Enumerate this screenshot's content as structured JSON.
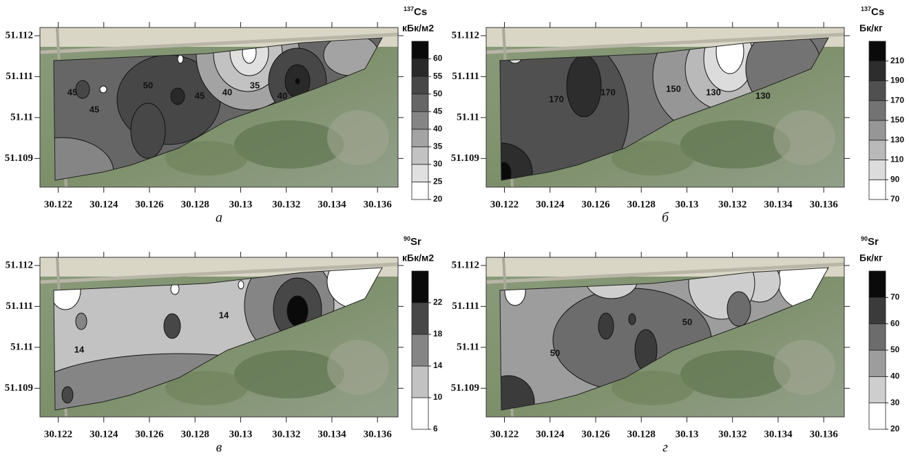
{
  "chart_data": [
    {
      "type": "contour",
      "isotope_mass": "137",
      "isotope": "Cs",
      "unit": "кБк/м2",
      "panel_label": "а",
      "xlim": [
        30.1212,
        30.1369
      ],
      "ylim": [
        51.1083,
        51.1122
      ],
      "xticks": [
        30.122,
        30.124,
        30.126,
        30.128,
        30.13,
        30.132,
        30.134,
        30.136
      ],
      "yticks": [
        51.112,
        51.111,
        51.11,
        51.109
      ],
      "levels": [
        20,
        25,
        30,
        35,
        40,
        45,
        50,
        55,
        60
      ],
      "level_max": 65,
      "contour_labels": [
        45,
        45,
        50,
        45,
        40,
        35,
        40
      ]
    },
    {
      "type": "contour",
      "isotope_mass": "137",
      "isotope": "Cs",
      "unit": "Бк/кг",
      "panel_label": "б",
      "xlim": [
        30.1212,
        30.1369
      ],
      "ylim": [
        51.1083,
        51.1122
      ],
      "xticks": [
        30.122,
        30.124,
        30.126,
        30.128,
        30.13,
        30.132,
        30.134,
        30.136
      ],
      "yticks": [
        51.112,
        51.111,
        51.11,
        51.109
      ],
      "levels": [
        70,
        90,
        110,
        130,
        150,
        170,
        190,
        210
      ],
      "level_max": 230,
      "contour_labels": [
        170,
        170,
        150,
        130,
        130
      ]
    },
    {
      "type": "contour",
      "isotope_mass": "90",
      "isotope": "Sr",
      "unit": "кБк/м2",
      "panel_label": "в",
      "xlim": [
        30.1212,
        30.1369
      ],
      "ylim": [
        51.1083,
        51.1122
      ],
      "xticks": [
        30.122,
        30.124,
        30.126,
        30.128,
        30.13,
        30.132,
        30.134,
        30.136
      ],
      "yticks": [
        51.112,
        51.111,
        51.11,
        51.109
      ],
      "levels": [
        6,
        10,
        14,
        18,
        22
      ],
      "level_max": 26,
      "contour_labels": [
        14,
        14
      ]
    },
    {
      "type": "contour",
      "isotope_mass": "90",
      "isotope": "Sr",
      "unit": "Бк/кг",
      "panel_label": "г",
      "xlim": [
        30.1212,
        30.1369
      ],
      "ylim": [
        51.1083,
        51.1122
      ],
      "xticks": [
        30.122,
        30.124,
        30.126,
        30.128,
        30.13,
        30.132,
        30.134,
        30.136
      ],
      "yticks": [
        51.112,
        51.111,
        51.11,
        51.109
      ],
      "levels": [
        20,
        30,
        40,
        50,
        60,
        70
      ],
      "level_max": 80,
      "contour_labels": [
        50,
        50
      ]
    }
  ]
}
